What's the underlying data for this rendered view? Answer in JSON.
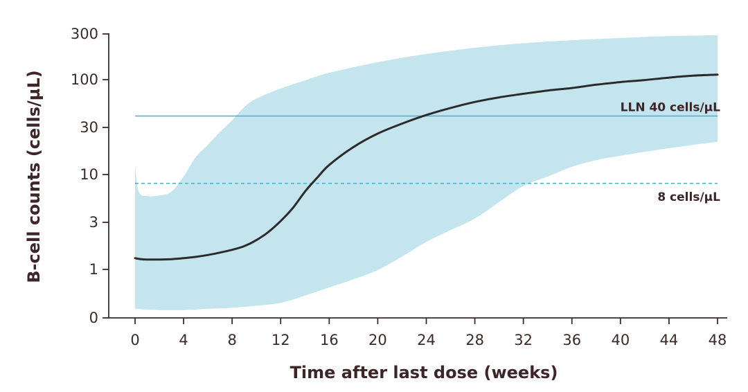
{
  "chart_data": {
    "type": "line",
    "title": "",
    "xlabel": "Time after last dose (weeks)",
    "ylabel": "B-cell counts (cells/µL)",
    "xlim": [
      0,
      48
    ],
    "x_ticks": [
      0,
      4,
      8,
      12,
      16,
      20,
      24,
      28,
      32,
      36,
      40,
      44,
      48
    ],
    "y_ticks": [
      "0",
      "1",
      "3",
      "10",
      "30",
      "100",
      "300"
    ],
    "y_scale": "log",
    "grid": false,
    "colors": {
      "median_line": "#2b2b2b",
      "band": "#c4e4ee",
      "reference_line": "#3fb6c8",
      "axis": "#3a2a2c"
    },
    "series": [
      {
        "kind": "median",
        "x": [
          0,
          0.5,
          1,
          2,
          3,
          4,
          5,
          6,
          7,
          8,
          9,
          10,
          11,
          12,
          13,
          14,
          15,
          16,
          18,
          20,
          22,
          24,
          26,
          28,
          30,
          32,
          34,
          36,
          38,
          40,
          42,
          44,
          46,
          48
        ],
        "y": [
          1.3,
          1.27,
          1.26,
          1.26,
          1.27,
          1.3,
          1.34,
          1.4,
          1.48,
          1.58,
          1.72,
          1.98,
          2.4,
          3.1,
          4.3,
          6.5,
          9.2,
          12.5,
          19,
          26,
          33,
          41,
          49,
          57,
          64,
          70,
          76,
          81,
          88,
          94,
          99,
          105,
          110,
          113
        ]
      },
      {
        "kind": "band-upper",
        "x": [
          0,
          0.3,
          1,
          2,
          3,
          4,
          5,
          6,
          7,
          8,
          9,
          10,
          12,
          14,
          16,
          20,
          24,
          28,
          32,
          36,
          40,
          44,
          48
        ],
        "y": [
          12.5,
          6.5,
          5.8,
          5.9,
          6.5,
          9.5,
          15,
          20,
          27,
          36,
          50,
          62,
          80,
          98,
          118,
          152,
          185,
          215,
          240,
          258,
          272,
          285,
          290
        ]
      },
      {
        "kind": "band-lower",
        "x": [
          0,
          2,
          4,
          6,
          8,
          10,
          12,
          14,
          16,
          18,
          20,
          22,
          24,
          26,
          28,
          30,
          32,
          34,
          36,
          38,
          40,
          42,
          44,
          46,
          48
        ],
        "y": [
          0.27,
          0.26,
          0.26,
          0.27,
          0.28,
          0.3,
          0.33,
          0.42,
          0.55,
          0.72,
          0.98,
          1.35,
          1.9,
          2.5,
          3.3,
          5,
          7.5,
          9.5,
          12,
          14,
          15.5,
          17,
          18.5,
          20,
          21.5
        ]
      }
    ],
    "reference_lines": [
      {
        "label": "LLN 40 cells/µL",
        "y": 40,
        "style": "solid"
      },
      {
        "label": "8 cells/µL",
        "y": 8,
        "style": "dashed"
      }
    ]
  }
}
